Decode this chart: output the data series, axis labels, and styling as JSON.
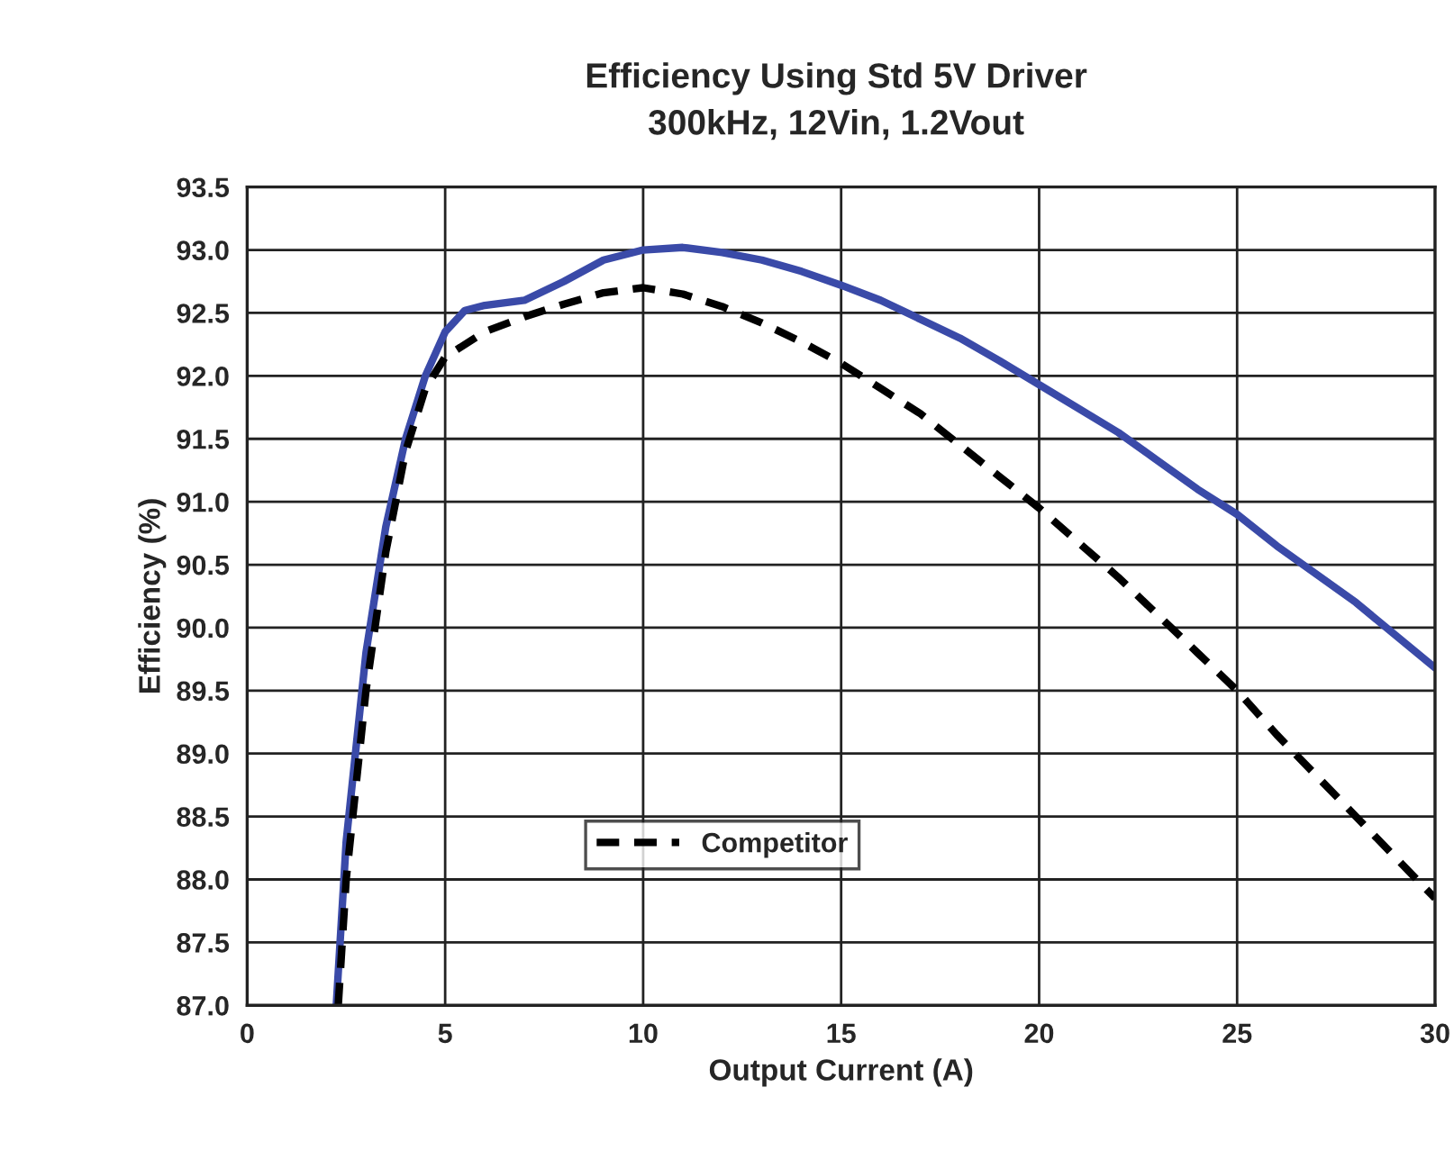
{
  "chart_data": {
    "type": "line",
    "title": "Efficiency Using Std 5V Driver",
    "subtitle": "300kHz, 12Vin, 1.2Vout",
    "xlabel": "Output Current (A)",
    "ylabel": "Efficiency (%)",
    "xlim": [
      0,
      30
    ],
    "xticks": [
      0,
      5,
      10,
      15,
      20,
      25,
      30
    ],
    "ylim": [
      87.0,
      93.5
    ],
    "yticks": [
      {
        "value": 87.0,
        "label": "87.0"
      },
      {
        "value": 87.5,
        "label": "87.5"
      },
      {
        "value": 88.0,
        "label": "88.0"
      },
      {
        "value": 88.5,
        "label": "88.5"
      },
      {
        "value": 89.0,
        "label": "89.0"
      },
      {
        "value": 89.5,
        "label": "89.5"
      },
      {
        "value": 90.0,
        "label": "90.0"
      },
      {
        "value": 90.5,
        "label": "90.5"
      },
      {
        "value": 91.0,
        "label": "91.0"
      },
      {
        "value": 91.5,
        "label": "91.5"
      },
      {
        "value": 92.0,
        "label": "92.0"
      },
      {
        "value": 92.5,
        "label": "92.5"
      },
      {
        "value": 93.0,
        "label": "93.0"
      },
      {
        "value": 93.5,
        "label": "93.5"
      }
    ],
    "grid": true,
    "legend": "bottom",
    "marker": "none",
    "series": [
      {
        "color": "#3a4aa8",
        "line_style": "solid",
        "x": [
          2.25,
          2.5,
          3,
          3.5,
          4,
          4.5,
          5,
          5.5,
          6,
          7,
          8,
          9,
          10,
          11,
          12,
          13,
          14,
          15,
          16,
          17,
          18,
          19,
          20,
          22,
          24,
          25,
          26,
          28,
          30
        ],
        "values": [
          87.0,
          88.3,
          89.8,
          90.8,
          91.5,
          92.0,
          92.35,
          92.52,
          92.56,
          92.6,
          92.75,
          92.92,
          93.0,
          93.02,
          92.98,
          92.92,
          92.83,
          92.72,
          92.6,
          92.45,
          92.3,
          92.12,
          91.93,
          91.55,
          91.1,
          90.9,
          90.65,
          90.2,
          89.68
        ]
      },
      {
        "name": "Competitor",
        "color": "#000000",
        "line_style": "dashed",
        "x": [
          2.3,
          2.5,
          3,
          3.5,
          4,
          4.5,
          5,
          6,
          7,
          8,
          9,
          10,
          11,
          12,
          13,
          14,
          15,
          16,
          17,
          18,
          19,
          20,
          22,
          24,
          25,
          26,
          28,
          30
        ],
        "values": [
          87.0,
          88.0,
          89.5,
          90.6,
          91.4,
          91.9,
          92.15,
          92.35,
          92.47,
          92.57,
          92.66,
          92.7,
          92.65,
          92.55,
          92.42,
          92.27,
          92.1,
          91.9,
          91.7,
          91.45,
          91.2,
          90.95,
          90.4,
          89.8,
          89.5,
          89.15,
          88.5,
          87.85
        ]
      }
    ]
  }
}
